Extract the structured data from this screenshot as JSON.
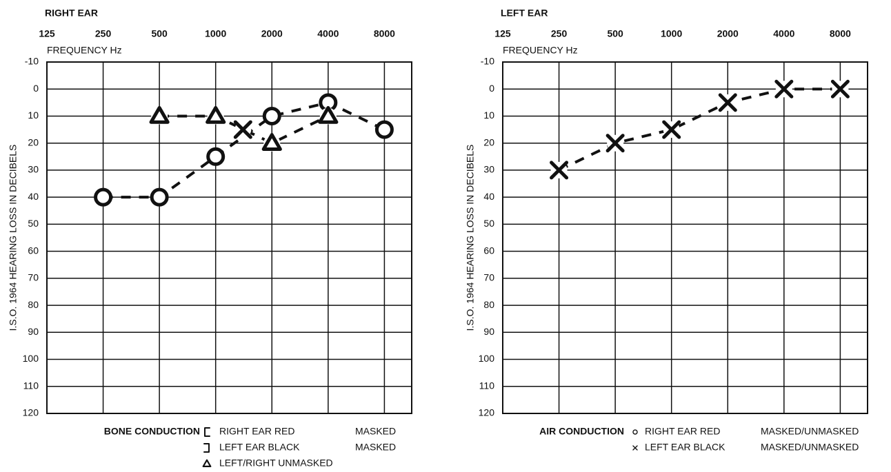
{
  "chart_data": [
    {
      "type": "line",
      "title": "RIGHT EAR",
      "xlabel": "FREQUENCY Hz",
      "ylabel": "I.S.O. 1964 HEARING LOSS IN DECIBELS",
      "log_x": true,
      "y_inverted": true,
      "grid": true,
      "xlim": [
        125,
        11200
      ],
      "xticks": [
        125,
        250,
        500,
        1000,
        2000,
        4000,
        8000
      ],
      "ylim": [
        -10,
        120
      ],
      "yticks": [
        -10,
        0,
        10,
        20,
        30,
        40,
        50,
        60,
        70,
        80,
        90,
        100,
        110,
        120
      ],
      "series": [
        {
          "marker": "circle",
          "color": "#111111",
          "x": [
            250,
            500,
            1000,
            2000,
            4000,
            8000
          ],
          "values": [
            40,
            40,
            25,
            10,
            5,
            15
          ]
        },
        {
          "marker": "triangle",
          "color": "#111111",
          "x": [
            500,
            1000,
            2000,
            4000
          ],
          "values": [
            10,
            10,
            20,
            10
          ]
        },
        {
          "marker": "cross",
          "color": "#111111",
          "x": [
            1400
          ],
          "values": [
            15
          ]
        }
      ],
      "legend": {
        "title": "BONE CONDUCTION",
        "entries": [
          {
            "marker": "bracket-left",
            "text": "RIGHT EAR RED",
            "note": "MASKED"
          },
          {
            "marker": "bracket-right",
            "text": "LEFT EAR BLACK",
            "note": "MASKED"
          },
          {
            "marker": "triangle",
            "text": "LEFT/RIGHT UNMASKED"
          }
        ]
      }
    },
    {
      "type": "line",
      "title": "LEFT EAR",
      "xlabel": "FREQUENCY Hz",
      "ylabel": "I.S.O. 1964 HEARING LOSS IN DECIBELS",
      "log_x": true,
      "y_inverted": true,
      "grid": true,
      "xlim": [
        125,
        11200
      ],
      "xticks": [
        125,
        250,
        500,
        1000,
        2000,
        4000,
        8000
      ],
      "ylim": [
        -10,
        120
      ],
      "yticks": [
        -10,
        0,
        10,
        20,
        30,
        40,
        50,
        60,
        70,
        80,
        90,
        100,
        110,
        120
      ],
      "series": [
        {
          "marker": "cross",
          "color": "#111111",
          "x": [
            250,
            500,
            1000,
            2000,
            4000,
            8000
          ],
          "values": [
            30,
            20,
            15,
            5,
            0,
            0
          ]
        }
      ],
      "legend": {
        "title": "AIR CONDUCTION",
        "entries": [
          {
            "marker": "circle-small",
            "text": "RIGHT EAR RED",
            "note": "MASKED/UNMASKED"
          },
          {
            "marker": "cross-small",
            "text": "LEFT EAR BLACK",
            "note": "MASKED/UNMASKED"
          }
        ]
      }
    }
  ]
}
